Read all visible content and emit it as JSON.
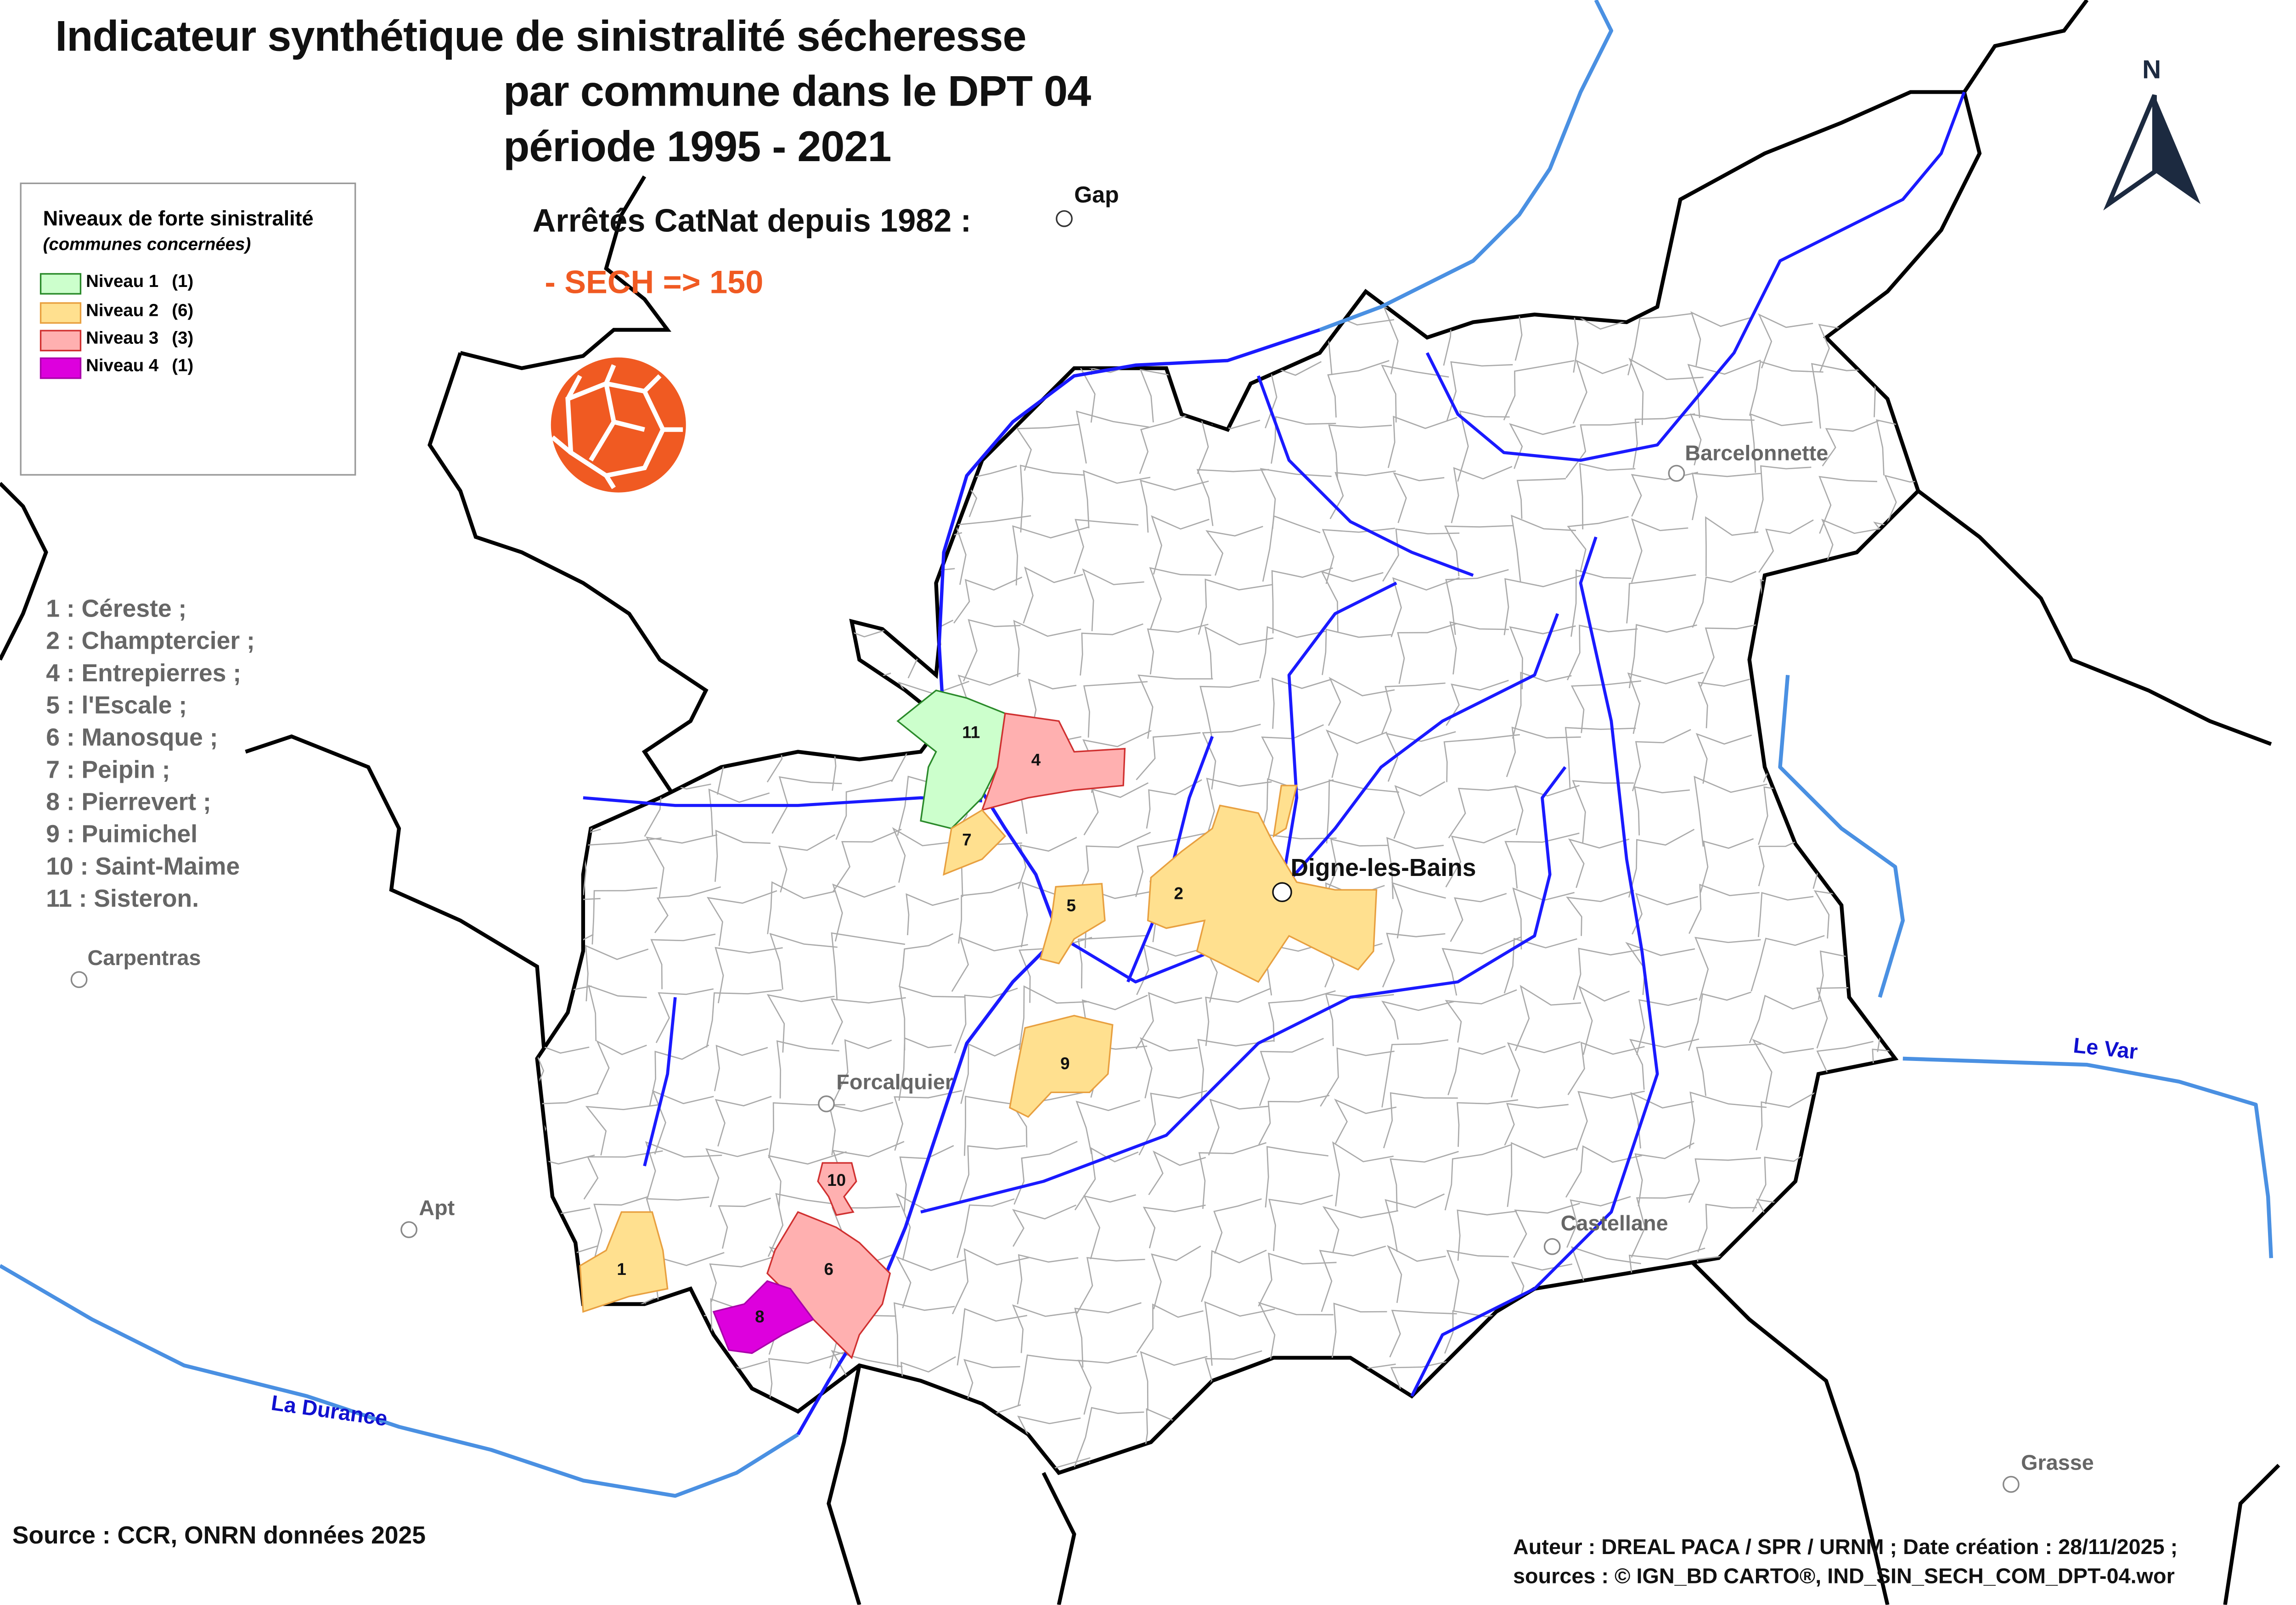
{
  "title": {
    "line1": "Indicateur synthétique de sinistralité sécheresse",
    "line2": "par commune dans le DPT 04",
    "line3": "période 1995 - 2021"
  },
  "catnat": {
    "heading": "Arrêtés CatNat depuis 1982 :",
    "value": "- SECH => 150",
    "color": "#f05a22",
    "icon": "drought-cracked-earth-icon"
  },
  "north_arrow": {
    "label": "N"
  },
  "legend": {
    "title": "Niveaux de forte sinistralité",
    "subtitle": "(communes concernées)",
    "items": [
      {
        "label": "Niveau 1",
        "count": "(1)",
        "fill": "#ccffcc",
        "stroke": "#2a8a2a"
      },
      {
        "label": "Niveau 2",
        "count": "(6)",
        "fill": "#ffe08f",
        "stroke": "#e8a040"
      },
      {
        "label": "Niveau 3",
        "count": "(3)",
        "fill": "#ffb0b0",
        "stroke": "#d03030"
      },
      {
        "label": "Niveau 4",
        "count": "(1)",
        "fill": "#dd00dd",
        "stroke": "#aa00aa"
      }
    ]
  },
  "communes_list": [
    "1 : Céreste ;",
    "2 : Champtercier ;",
    "4 : Entrepierres ;",
    "5 : l'Escale ;",
    "6 : Manosque ;",
    "7 : Peipin ;",
    "8 : Pierrevert ;",
    "9 : Puimichel",
    "10 : Saint-Maime",
    "11 : Sisteron."
  ],
  "map_labels": {
    "communes": [
      "1",
      "2",
      "4",
      "5",
      "6",
      "7",
      "8",
      "9",
      "10",
      "11"
    ],
    "places": {
      "gap": "Gap",
      "barcelonnette": "Barcelonnette",
      "digne": "Digne-les-Bains",
      "carpentras": "Carpentras",
      "forcalquier": "Forcalquier",
      "apt": "Apt",
      "castellane": "Castellane",
      "grasse": "Grasse"
    },
    "rivers": {
      "durance": "La Durance",
      "var": "Le Var"
    }
  },
  "footer": {
    "source": "Source : CCR, ONRN données 2025",
    "author": "Auteur : DREAL PACA / SPR / URNM ; Date création : 28/11/2025  ;",
    "sources": "sources : © IGN_BD CARTO®, IND_SIN_SECH_COM_DPT-04.wor"
  },
  "colors": {
    "river": "#1a1aff",
    "river_outer": "#4a90e2",
    "boundary": "#000000",
    "commune_border": "#999999"
  }
}
